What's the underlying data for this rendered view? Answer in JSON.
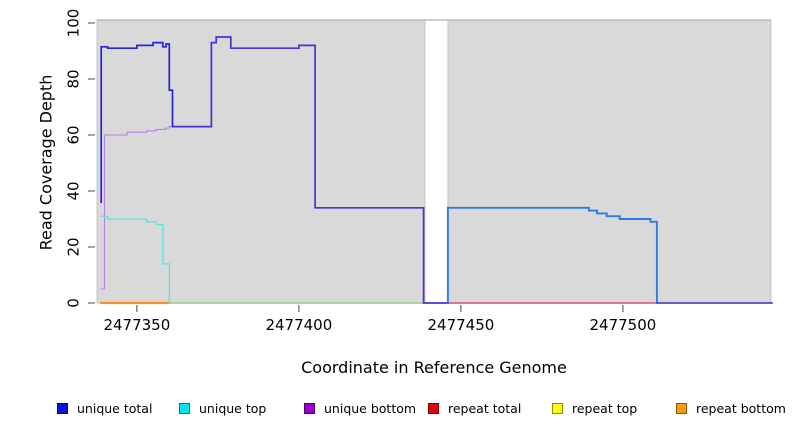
{
  "chart_data": {
    "type": "line",
    "title": "",
    "xlabel": "Coordinate in Reference Genome",
    "ylabel": "Read Coverage Depth",
    "x_ticks": [
      2477350,
      2477400,
      2477450,
      2477500
    ],
    "x_tick_labels": [
      "2477350",
      "2477400",
      "2477450",
      "2477500"
    ],
    "y_ticks": [
      0,
      20,
      40,
      60,
      80,
      100
    ],
    "y_tick_labels": [
      "0",
      "20",
      "40",
      "60",
      "80",
      "100"
    ],
    "x_range": [
      2477337.7,
      2477545.7
    ],
    "y_range": [
      0,
      100
    ],
    "grid": false,
    "plot_background": "#ffffff",
    "shade_fill": "#d9d9d9",
    "shade_stroke": "#bcbcbc",
    "shade_regions": [
      {
        "name": "coverage-region-left",
        "x0": 2477337.7,
        "x1": 2477438.9
      },
      {
        "name": "coverage-region-right",
        "x0": 2477446.0,
        "x1": 2477545.7
      }
    ],
    "gap_region": {
      "x0": 2477438.9,
      "x1": 2477446.0
    },
    "series": [
      {
        "name": "unique total",
        "color": "#1212d8",
        "points": [
          [
            2477339,
            36
          ],
          [
            2477339,
            91.5
          ],
          [
            2477341,
            91.5
          ],
          [
            2477341,
            91
          ],
          [
            2477350,
            91
          ],
          [
            2477350,
            92
          ],
          [
            2477355,
            92
          ],
          [
            2477355,
            93
          ],
          [
            2477358,
            93
          ],
          [
            2477358,
            91.5
          ],
          [
            2477359,
            91.5
          ],
          [
            2477359,
            92.5
          ],
          [
            2477360,
            92.5
          ],
          [
            2477360,
            76
          ],
          [
            2477361,
            76
          ],
          [
            2477361,
            63
          ],
          [
            2477373,
            63
          ],
          [
            2477373,
            93
          ],
          [
            2477374.5,
            93
          ],
          [
            2477374.5,
            95
          ],
          [
            2477379,
            95
          ],
          [
            2477379,
            91
          ],
          [
            2477400,
            91
          ],
          [
            2477400,
            92
          ],
          [
            2477405,
            92
          ],
          [
            2477405,
            34
          ],
          [
            2477438.5,
            34
          ],
          [
            2477438.5,
            0
          ],
          [
            2477446,
            0
          ],
          [
            2477446,
            34
          ],
          [
            2477489.5,
            34
          ],
          [
            2477489.5,
            33
          ],
          [
            2477492,
            33
          ],
          [
            2477492,
            32
          ],
          [
            2477495,
            32
          ],
          [
            2477495,
            31
          ],
          [
            2477499,
            31
          ],
          [
            2477499,
            30
          ],
          [
            2477508.5,
            30
          ],
          [
            2477508.5,
            29
          ],
          [
            2477510.5,
            29
          ],
          [
            2477510.5,
            0
          ],
          [
            2477546,
            0
          ]
        ]
      },
      {
        "name": "unique top",
        "color": "#5fe0e0",
        "points": [
          [
            2477339,
            31
          ],
          [
            2477341,
            31
          ],
          [
            2477341,
            30
          ],
          [
            2477353,
            30
          ],
          [
            2477353,
            29
          ],
          [
            2477356,
            29
          ],
          [
            2477356,
            28
          ],
          [
            2477358,
            28
          ],
          [
            2477358,
            14
          ],
          [
            2477360,
            14
          ],
          [
            2477360,
            0
          ],
          [
            2477438.9,
            0
          ]
        ]
      },
      {
        "name": "unique bottom",
        "color": "#b77fe3",
        "points": [
          [
            2477339,
            5
          ],
          [
            2477340,
            5
          ],
          [
            2477340,
            60
          ],
          [
            2477347,
            60
          ],
          [
            2477347,
            61
          ],
          [
            2477353,
            61
          ],
          [
            2477353,
            61.5
          ],
          [
            2477356,
            61.5
          ],
          [
            2477356,
            62
          ],
          [
            2477359,
            62
          ],
          [
            2477359,
            62.5
          ],
          [
            2477360,
            62.5
          ],
          [
            2477360,
            63
          ],
          [
            2477373,
            63
          ]
        ]
      },
      {
        "name": "repeat total",
        "color": "#cc5570",
        "points": [
          [
            2477446,
            0
          ],
          [
            2477546,
            0
          ]
        ]
      },
      {
        "name": "repeat top",
        "color": "#8fc98f",
        "points": [
          [
            2477360,
            0
          ],
          [
            2477438.9,
            0
          ]
        ]
      },
      {
        "name": "repeat bottom",
        "color": "#f59320",
        "points": [
          [
            2477339,
            0
          ],
          [
            2477360,
            0
          ]
        ]
      }
    ],
    "draw_segments": [
      {
        "name": "repeat-bottom-zero-line",
        "color": "#f59320",
        "width": 2.2,
        "points": [
          [
            2477339,
            0
          ],
          [
            2477360,
            0
          ]
        ]
      },
      {
        "name": "zero-line-left-of-gap",
        "color": "#8fc98f",
        "width": 1.4,
        "points": [
          [
            2477360,
            0
          ],
          [
            2477438.9,
            0
          ]
        ]
      },
      {
        "name": "repeat-total-zero-line",
        "color": "#cc5570",
        "width": 1.4,
        "points": [
          [
            2477446,
            0
          ],
          [
            2477546,
            0
          ]
        ]
      },
      {
        "name": "unique-bottom-line",
        "color": "#b77fe3",
        "width": 1.1,
        "points": [
          [
            2477339,
            5
          ],
          [
            2477340,
            5
          ],
          [
            2477340,
            60
          ],
          [
            2477347,
            60
          ],
          [
            2477347,
            61
          ],
          [
            2477353,
            61
          ],
          [
            2477353,
            61.5
          ],
          [
            2477356,
            61.5
          ],
          [
            2477356,
            62
          ],
          [
            2477359,
            62
          ],
          [
            2477359,
            62.5
          ],
          [
            2477360,
            62.5
          ],
          [
            2477360,
            63
          ],
          [
            2477373,
            63
          ]
        ]
      },
      {
        "name": "unique-top-line",
        "color": "#5fe0e0",
        "width": 1.3,
        "points": [
          [
            2477339,
            31
          ],
          [
            2477341,
            31
          ],
          [
            2477341,
            30
          ],
          [
            2477353,
            30
          ],
          [
            2477353,
            29
          ],
          [
            2477356,
            29
          ],
          [
            2477356,
            28
          ],
          [
            2477358,
            28
          ],
          [
            2477358,
            14
          ],
          [
            2477360,
            14
          ],
          [
            2477360,
            0
          ]
        ]
      },
      {
        "name": "unique-total-left",
        "color": "#2525d8",
        "width": 1.7,
        "points": [
          [
            2477339,
            36
          ],
          [
            2477339,
            91.5
          ],
          [
            2477341,
            91.5
          ],
          [
            2477341,
            91
          ],
          [
            2477350,
            91
          ],
          [
            2477350,
            92
          ],
          [
            2477355,
            92
          ],
          [
            2477355,
            93
          ],
          [
            2477358,
            93
          ],
          [
            2477358,
            91.5
          ],
          [
            2477359,
            91.5
          ],
          [
            2477359,
            92.5
          ],
          [
            2477360,
            92.5
          ],
          [
            2477360,
            76
          ],
          [
            2477361,
            76
          ],
          [
            2477361,
            63
          ]
        ]
      },
      {
        "name": "unique-total-merged-bottom",
        "color": "#4b2fd8",
        "width": 1.7,
        "points": [
          [
            2477361,
            63
          ],
          [
            2477373,
            63
          ],
          [
            2477373,
            93
          ],
          [
            2477374.5,
            93
          ],
          [
            2477374.5,
            95
          ],
          [
            2477379,
            95
          ],
          [
            2477379,
            91
          ],
          [
            2477400,
            91
          ],
          [
            2477400,
            92
          ],
          [
            2477405,
            92
          ],
          [
            2477405,
            34
          ],
          [
            2477438.5,
            34
          ],
          [
            2477438.5,
            0
          ],
          [
            2477446,
            0
          ]
        ]
      },
      {
        "name": "unique-total-right-merged-top",
        "color": "#2e7ce8",
        "width": 1.9,
        "points": [
          [
            2477446,
            0
          ],
          [
            2477446,
            34
          ],
          [
            2477489.5,
            34
          ],
          [
            2477489.5,
            33
          ],
          [
            2477492,
            33
          ],
          [
            2477492,
            32
          ],
          [
            2477495,
            32
          ],
          [
            2477495,
            31
          ],
          [
            2477499,
            31
          ],
          [
            2477499,
            30
          ],
          [
            2477508.5,
            30
          ],
          [
            2477508.5,
            29
          ],
          [
            2477510.5,
            29
          ],
          [
            2477510.5,
            0
          ]
        ]
      },
      {
        "name": "zero-line-right-end",
        "color": "#4a3fd0",
        "width": 1.6,
        "points": [
          [
            2477510.5,
            0
          ],
          [
            2477546,
            0
          ]
        ]
      }
    ],
    "legend": {
      "position": "bottom",
      "entries": [
        {
          "label": "unique total",
          "color": "#1010dd"
        },
        {
          "label": "unique top",
          "color": "#00e5e5"
        },
        {
          "label": "unique bottom",
          "color": "#9400d3"
        },
        {
          "label": "repeat total",
          "color": "#e8000d"
        },
        {
          "label": "repeat top",
          "color": "#ffff00"
        },
        {
          "label": "repeat bottom",
          "color": "#ff9d00"
        }
      ]
    }
  }
}
